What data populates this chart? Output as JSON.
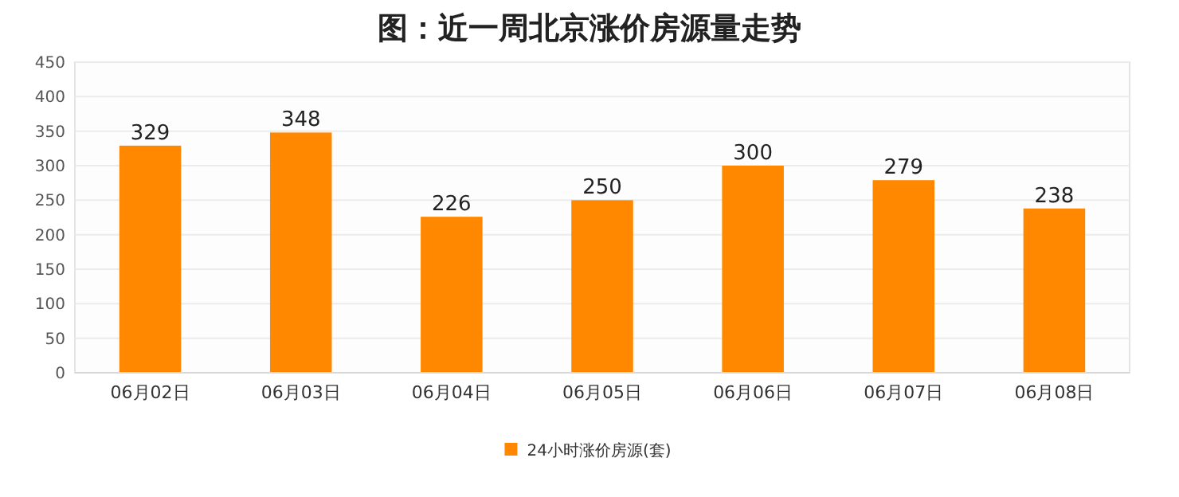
{
  "chart_data": {
    "type": "bar",
    "title": "图：近一周北京涨价房源量走势",
    "categories": [
      "06月02日",
      "06月03日",
      "06月04日",
      "06月05日",
      "06月06日",
      "06月07日",
      "06月08日"
    ],
    "series": [
      {
        "name": "24小时涨价房源(套)",
        "color": "#ff8800",
        "values": [
          329,
          348,
          226,
          250,
          300,
          279,
          238
        ]
      }
    ],
    "ylim": [
      0,
      450
    ],
    "yticks": [
      0,
      50,
      100,
      150,
      200,
      250,
      300,
      350,
      400,
      450
    ],
    "grid": "y",
    "legend": "bottom",
    "data_labels": true
  }
}
